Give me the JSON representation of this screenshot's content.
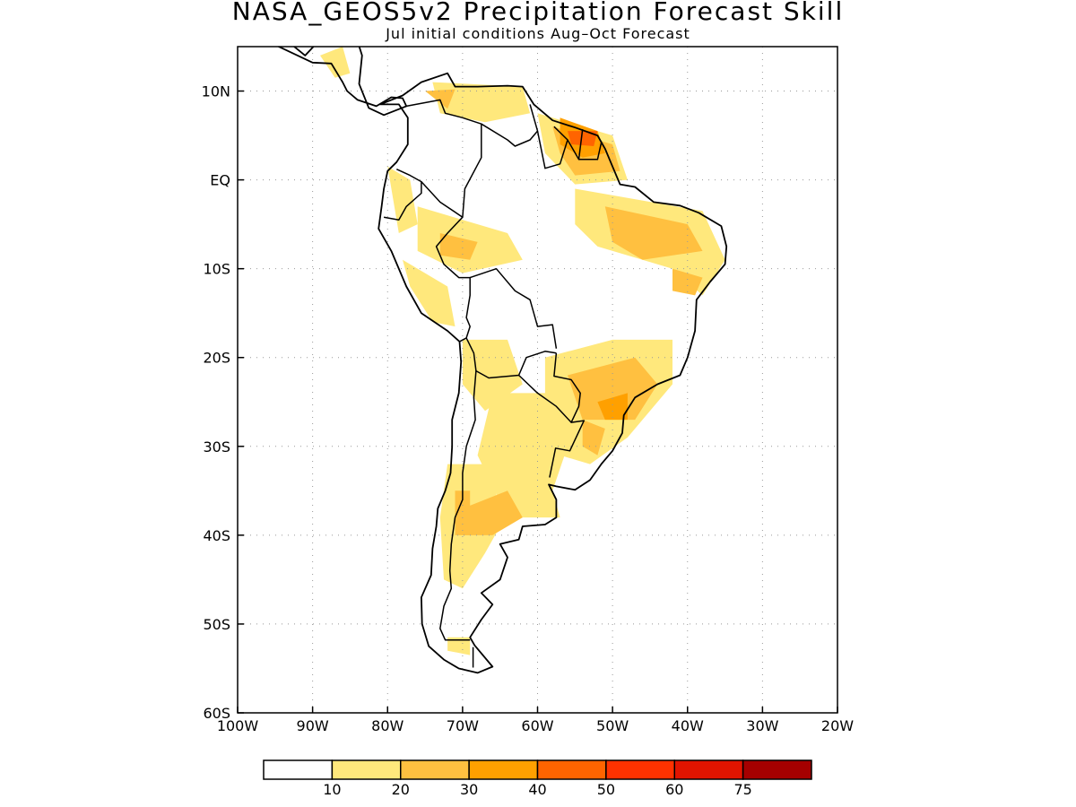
{
  "title": "NASA_GEOS5v2 Precipitation Forecast Skill",
  "subtitle": "Jul initial conditions  Aug–Oct Forecast",
  "map": {
    "lon_range": [
      -100,
      -20
    ],
    "lat_range": [
      -60,
      15
    ],
    "x_ticks": [
      {
        "value": -100,
        "label": "100W"
      },
      {
        "value": -90,
        "label": "90W"
      },
      {
        "value": -80,
        "label": "80W"
      },
      {
        "value": -70,
        "label": "70W"
      },
      {
        "value": -60,
        "label": "60W"
      },
      {
        "value": -50,
        "label": "50W"
      },
      {
        "value": -40,
        "label": "40W"
      },
      {
        "value": -30,
        "label": "30W"
      },
      {
        "value": -20,
        "label": "20W"
      }
    ],
    "y_ticks": [
      {
        "value": 10,
        "label": "10N"
      },
      {
        "value": 0,
        "label": "EQ"
      },
      {
        "value": -10,
        "label": "10S"
      },
      {
        "value": -20,
        "label": "20S"
      },
      {
        "value": -30,
        "label": "30S"
      },
      {
        "value": -40,
        "label": "40S"
      },
      {
        "value": -50,
        "label": "50S"
      },
      {
        "value": -60,
        "label": "60S"
      }
    ],
    "grid": true,
    "coastline": [
      [
        -81,
        8.5
      ],
      [
        -78,
        9.5
      ],
      [
        -75.5,
        11
      ],
      [
        -72,
        12
      ],
      [
        -71,
        10.5
      ],
      [
        -68,
        10.5
      ],
      [
        -64,
        10.6
      ],
      [
        -62,
        10.5
      ],
      [
        -60.5,
        8.5
      ],
      [
        -58,
        6.7
      ],
      [
        -55,
        5.9
      ],
      [
        -52,
        5
      ],
      [
        -51,
        3.5
      ],
      [
        -50,
        1.5
      ],
      [
        -49,
        -0.5
      ],
      [
        -47,
        -0.8
      ],
      [
        -44.5,
        -2.5
      ],
      [
        -41,
        -2.9
      ],
      [
        -38.5,
        -3.7
      ],
      [
        -35.5,
        -5.2
      ],
      [
        -34.8,
        -7.5
      ],
      [
        -35,
        -9.5
      ],
      [
        -37,
        -11.5
      ],
      [
        -38.8,
        -13.5
      ],
      [
        -39,
        -17
      ],
      [
        -40,
        -20
      ],
      [
        -41,
        -22
      ],
      [
        -44,
        -23
      ],
      [
        -47,
        -24.5
      ],
      [
        -48.5,
        -26.5
      ],
      [
        -48.7,
        -28.5
      ],
      [
        -50,
        -30.5
      ],
      [
        -51.5,
        -32
      ],
      [
        -53,
        -33.8
      ],
      [
        -55,
        -34.9
      ],
      [
        -57.5,
        -34.5
      ],
      [
        -58.5,
        -34.3
      ],
      [
        -57.5,
        -36
      ],
      [
        -57.5,
        -38
      ],
      [
        -59,
        -38.8
      ],
      [
        -62,
        -39
      ],
      [
        -62.5,
        -40.5
      ],
      [
        -65,
        -41
      ],
      [
        -64,
        -42.5
      ],
      [
        -65,
        -45
      ],
      [
        -67.5,
        -46.5
      ],
      [
        -66,
        -47.8
      ],
      [
        -67.5,
        -49.5
      ],
      [
        -69,
        -51.5
      ],
      [
        -68.4,
        -52.4
      ],
      [
        -66,
        -54.8
      ],
      [
        -68,
        -55.5
      ],
      [
        -70.5,
        -55
      ],
      [
        -72.5,
        -54
      ],
      [
        -74.5,
        -52.5
      ],
      [
        -75.4,
        -50
      ],
      [
        -75.5,
        -47
      ],
      [
        -74.2,
        -44.5
      ],
      [
        -74,
        -41.5
      ],
      [
        -73.5,
        -39
      ],
      [
        -73.3,
        -37
      ],
      [
        -72.3,
        -35
      ],
      [
        -71.6,
        -33
      ],
      [
        -71.4,
        -30
      ],
      [
        -71.4,
        -27
      ],
      [
        -70.5,
        -24
      ],
      [
        -70.2,
        -20.5
      ],
      [
        -70.4,
        -18.2
      ],
      [
        -72,
        -17
      ],
      [
        -75.5,
        -15
      ],
      [
        -77.5,
        -12
      ],
      [
        -79.5,
        -8
      ],
      [
        -81.2,
        -5.5
      ],
      [
        -80.8,
        -3
      ],
      [
        -80.5,
        -1
      ],
      [
        -80,
        1
      ],
      [
        -78.8,
        2
      ],
      [
        -77.3,
        4
      ],
      [
        -77.3,
        7
      ],
      [
        -78.5,
        8.5
      ],
      [
        -81,
        8.5
      ]
    ],
    "central_america": [
      [
        -85.5,
        15.2
      ],
      [
        -89,
        15.8
      ],
      [
        -91,
        14
      ],
      [
        -94.2,
        16.2
      ],
      [
        -96,
        15.6
      ],
      [
        -90,
        13.2
      ],
      [
        -87.5,
        13.1
      ],
      [
        -86,
        11
      ],
      [
        -85.4,
        10
      ],
      [
        -84,
        9
      ],
      [
        -81.5,
        8.3
      ],
      [
        -79.5,
        9.3
      ],
      [
        -78,
        9.2
      ],
      [
        -77.5,
        8.3
      ],
      [
        -80.5,
        7.3
      ],
      [
        -82.5,
        8.1
      ],
      [
        -83.8,
        10.8
      ],
      [
        -83.4,
        14
      ],
      [
        -84,
        15.6
      ],
      [
        -85.5,
        15.2
      ]
    ],
    "borders": [
      [
        [
          -77.5,
          8.3
        ],
        [
          -73,
          9
        ],
        [
          -72.3,
          7.5
        ],
        [
          -70,
          7
        ],
        [
          -67.5,
          6.3
        ],
        [
          -67.5,
          2.5
        ],
        [
          -69.7,
          -1
        ],
        [
          -70,
          -4.2
        ]
      ],
      [
        [
          -67.5,
          6.3
        ],
        [
          -64,
          4.5
        ],
        [
          -63,
          3.8
        ],
        [
          -61,
          4.5
        ],
        [
          -60,
          5.5
        ],
        [
          -61,
          8.5
        ]
      ],
      [
        [
          -60,
          5.5
        ],
        [
          -59,
          1.3
        ],
        [
          -57,
          1.8
        ],
        [
          -56,
          4.5
        ],
        [
          -57.8,
          6
        ]
      ],
      [
        [
          -56,
          4.5
        ],
        [
          -54.5,
          2.3
        ],
        [
          -54,
          5.7
        ]
      ],
      [
        [
          -54.5,
          2.3
        ],
        [
          -52,
          2.3
        ],
        [
          -51.5,
          4.2
        ]
      ],
      [
        [
          -78.8,
          1.2
        ],
        [
          -77,
          0.5
        ],
        [
          -75.5,
          -0.2
        ],
        [
          -75.5,
          -1.5
        ],
        [
          -77.5,
          -3
        ],
        [
          -78.5,
          -4.5
        ],
        [
          -80.5,
          -4.2
        ]
      ],
      [
        [
          -75.5,
          -0.2
        ],
        [
          -73,
          -2.5
        ],
        [
          -70,
          -4.2
        ],
        [
          -72,
          -6
        ],
        [
          -73.5,
          -7.5
        ],
        [
          -72.5,
          -9.5
        ],
        [
          -70.5,
          -11
        ],
        [
          -69,
          -11
        ],
        [
          -69,
          -13
        ],
        [
          -69.5,
          -15.5
        ],
        [
          -69,
          -16.5
        ],
        [
          -69.5,
          -17.8
        ],
        [
          -70.4,
          -18.2
        ]
      ],
      [
        [
          -69,
          -11
        ],
        [
          -65.5,
          -10
        ],
        [
          -63,
          -12.5
        ],
        [
          -61,
          -13.5
        ],
        [
          -60,
          -16.5
        ],
        [
          -58,
          -16.3
        ],
        [
          -57.5,
          -19
        ]
      ],
      [
        [
          -69.5,
          -17.8
        ],
        [
          -68.5,
          -19.5
        ],
        [
          -68.2,
          -21.5
        ],
        [
          -66.5,
          -22.3
        ],
        [
          -62.5,
          -22
        ],
        [
          -61.5,
          -20
        ],
        [
          -59,
          -19.3
        ],
        [
          -57.5,
          -19.5
        ]
      ],
      [
        [
          -62.5,
          -22
        ],
        [
          -60,
          -24
        ],
        [
          -57.5,
          -25.5
        ],
        [
          -55.5,
          -27.3
        ],
        [
          -54.5,
          -25.5
        ],
        [
          -54.3,
          -24
        ],
        [
          -55.5,
          -22.5
        ],
        [
          -57.8,
          -22.1
        ],
        [
          -57.5,
          -19.5
        ]
      ],
      [
        [
          -55.5,
          -27.3
        ],
        [
          -53.8,
          -27.1
        ],
        [
          -55.7,
          -30.5
        ],
        [
          -57.6,
          -30.2
        ],
        [
          -58.4,
          -33.5
        ]
      ],
      [
        [
          -68.2,
          -21.5
        ],
        [
          -68.5,
          -24.5
        ],
        [
          -68.3,
          -27
        ],
        [
          -69.5,
          -30
        ],
        [
          -70,
          -33
        ],
        [
          -70,
          -36
        ],
        [
          -71,
          -38
        ],
        [
          -71.5,
          -41
        ],
        [
          -71.7,
          -44
        ],
        [
          -71.5,
          -46
        ],
        [
          -72.5,
          -48
        ],
        [
          -73,
          -50.5
        ],
        [
          -72.3,
          -51.8
        ],
        [
          -69,
          -51.8
        ]
      ],
      [
        [
          -68.6,
          -52.6
        ],
        [
          -68.6,
          -54.9
        ]
      ]
    ],
    "skill_areas": [
      {
        "level": "10-20",
        "pts": [
          [
            -89,
            14
          ],
          [
            -86,
            15
          ],
          [
            -85,
            12
          ],
          [
            -87,
            11.5
          ]
        ]
      },
      {
        "level": "10-20",
        "pts": [
          [
            -74,
            11
          ],
          [
            -62,
            10.5
          ],
          [
            -61,
            7.5
          ],
          [
            -67,
            6.5
          ],
          [
            -73,
            7.5
          ]
        ]
      },
      {
        "level": "10-20",
        "pts": [
          [
            -60,
            7.5
          ],
          [
            -50,
            5
          ],
          [
            -48,
            0
          ],
          [
            -55,
            -0.5
          ],
          [
            -59,
            3
          ]
        ]
      },
      {
        "level": "10-20",
        "pts": [
          [
            -55,
            -1
          ],
          [
            -38,
            -3.5
          ],
          [
            -35,
            -9
          ],
          [
            -38,
            -13
          ],
          [
            -42,
            -10
          ],
          [
            -46,
            -9
          ],
          [
            -52,
            -7.5
          ],
          [
            -55,
            -5
          ]
        ]
      },
      {
        "level": "10-20",
        "pts": [
          [
            -80,
            1.5
          ],
          [
            -78.5,
            -6
          ],
          [
            -76,
            -5
          ],
          [
            -77,
            0
          ]
        ]
      },
      {
        "level": "10-20",
        "pts": [
          [
            -76,
            -3
          ],
          [
            -64,
            -6
          ],
          [
            -62,
            -9
          ],
          [
            -70,
            -10.5
          ],
          [
            -76,
            -8
          ]
        ]
      },
      {
        "level": "10-20",
        "pts": [
          [
            -78,
            -9
          ],
          [
            -72,
            -12
          ],
          [
            -71,
            -16.5
          ],
          [
            -74,
            -16
          ],
          [
            -77,
            -12
          ]
        ]
      },
      {
        "level": "10-20",
        "pts": [
          [
            -70,
            -18
          ],
          [
            -64,
            -18
          ],
          [
            -62,
            -23
          ],
          [
            -67,
            -26
          ],
          [
            -70,
            -23
          ]
        ]
      },
      {
        "level": "10-20",
        "pts": [
          [
            -59,
            -20
          ],
          [
            -50,
            -18
          ],
          [
            -42,
            -18
          ],
          [
            -42,
            -23
          ],
          [
            -48,
            -29
          ],
          [
            -53,
            -32
          ],
          [
            -57,
            -31
          ],
          [
            -59,
            -27
          ]
        ]
      },
      {
        "level": "10-20",
        "pts": [
          [
            -66,
            -24
          ],
          [
            -59,
            -24
          ],
          [
            -56,
            -30
          ],
          [
            -58,
            -35
          ],
          [
            -57,
            -38
          ],
          [
            -64,
            -38
          ],
          [
            -68,
            -31
          ]
        ]
      },
      {
        "level": "10-20",
        "pts": [
          [
            -72,
            -32
          ],
          [
            -66,
            -32
          ],
          [
            -65,
            -39
          ],
          [
            -67,
            -42
          ],
          [
            -70,
            -46
          ],
          [
            -72.5,
            -45
          ],
          [
            -73,
            -38
          ]
        ]
      },
      {
        "level": "10-20",
        "pts": [
          [
            -72,
            -51.5
          ],
          [
            -69,
            -51.5
          ],
          [
            -69,
            -53.5
          ],
          [
            -72,
            -53
          ]
        ]
      },
      {
        "level": "20-30",
        "pts": [
          [
            -75,
            10
          ],
          [
            -71,
            10.2
          ],
          [
            -72,
            8
          ]
        ]
      },
      {
        "level": "20-30",
        "pts": [
          [
            -58,
            6
          ],
          [
            -50,
            4
          ],
          [
            -49,
            1
          ],
          [
            -55,
            0.5
          ],
          [
            -57,
            3
          ]
        ]
      },
      {
        "level": "20-30",
        "pts": [
          [
            -51,
            -3
          ],
          [
            -40,
            -5
          ],
          [
            -38,
            -8
          ],
          [
            -46,
            -9
          ],
          [
            -50,
            -7
          ]
        ]
      },
      {
        "level": "20-30",
        "pts": [
          [
            -42,
            -10
          ],
          [
            -38,
            -11
          ],
          [
            -39,
            -13
          ],
          [
            -42,
            -12.5
          ]
        ]
      },
      {
        "level": "20-30",
        "pts": [
          [
            -73,
            -6
          ],
          [
            -68,
            -7
          ],
          [
            -69,
            -9
          ],
          [
            -73,
            -8.5
          ]
        ]
      },
      {
        "level": "20-30",
        "pts": [
          [
            -56,
            -22
          ],
          [
            -47,
            -20
          ],
          [
            -44,
            -23
          ],
          [
            -47,
            -27
          ],
          [
            -54,
            -27
          ]
        ]
      },
      {
        "level": "20-30",
        "pts": [
          [
            -54,
            -27
          ],
          [
            -51,
            -28
          ],
          [
            -52,
            -31
          ],
          [
            -54,
            -30
          ]
        ]
      },
      {
        "level": "20-30",
        "pts": [
          [
            -71,
            -35
          ],
          [
            -69,
            -35
          ],
          [
            -69,
            -40
          ],
          [
            -71,
            -40
          ]
        ]
      },
      {
        "level": "20-30",
        "pts": [
          [
            -70,
            -37
          ],
          [
            -64,
            -35
          ],
          [
            -62,
            -38
          ],
          [
            -66,
            -40
          ],
          [
            -70,
            -40
          ]
        ]
      },
      {
        "level": "30-40",
        "pts": [
          [
            -57,
            7
          ],
          [
            -52,
            5.5
          ],
          [
            -51,
            3
          ],
          [
            -54,
            2.5
          ],
          [
            -57,
            4
          ]
        ]
      },
      {
        "level": "30-40",
        "pts": [
          [
            -52,
            -25
          ],
          [
            -48,
            -24
          ],
          [
            -48,
            -27
          ],
          [
            -51,
            -27
          ]
        ]
      },
      {
        "level": "40-50",
        "pts": [
          [
            -56,
            5.5
          ],
          [
            -52,
            5.5
          ],
          [
            -52.5,
            3.8
          ],
          [
            -55.5,
            4
          ]
        ]
      }
    ]
  },
  "colorbar": {
    "colors": [
      "#ffffff",
      "#ffe87c",
      "#ffc040",
      "#ffa000",
      "#ff6400",
      "#ff3200",
      "#e11400",
      "#a50000"
    ],
    "labels": [
      "10",
      "20",
      "30",
      "40",
      "50",
      "60",
      "75"
    ]
  }
}
